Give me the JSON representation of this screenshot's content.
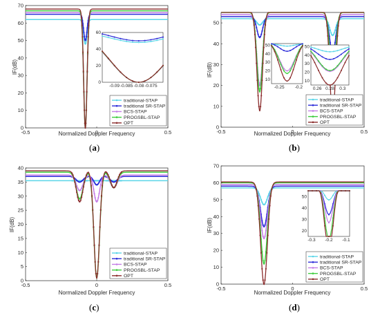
{
  "legend_labels": [
    "traditional-STAP",
    "traditional SR-STAP",
    "BCS-STAP",
    "PROGSBL-STAP",
    "OPT"
  ],
  "series_colors": [
    "#5bd5e8",
    "#2b2bd9",
    "#c47de6",
    "#3dcc3d",
    "#8a2b2b"
  ],
  "chart_data": [
    {
      "panel": "(a)",
      "type": "line",
      "xlabel": "Normalized Doppler Frequency",
      "ylabel": "IF(dB)",
      "xlim": [
        -0.5,
        0.5
      ],
      "ylim": [
        0,
        70
      ],
      "xticks": [
        "-0.5",
        "0",
        "0.5"
      ],
      "yticks": [
        "0",
        "10",
        "20",
        "30",
        "40",
        "50",
        "60",
        "70"
      ],
      "legend_position": "bottom-right",
      "notches": [
        {
          "center": -0.08,
          "width": 0.03,
          "depths": [
            48,
            50,
            0,
            0,
            0
          ]
        }
      ],
      "baseline": [
        62,
        65,
        66,
        67,
        68
      ],
      "inset": {
        "xticks": [
          "-0.09",
          "-0.085",
          "-0.08",
          "-0.075"
        ],
        "yticks": [
          "0",
          "20",
          "40",
          "60"
        ]
      }
    },
    {
      "panel": "(b)",
      "type": "line",
      "xlabel": "Normalized Doppler Frequency",
      "ylabel": "IF(dB)",
      "xlim": [
        -0.5,
        0.5
      ],
      "ylim": [
        0,
        55
      ],
      "xticks": [
        "-0.5",
        "0",
        "0.5"
      ],
      "yticks": [
        "0",
        "10",
        "20",
        "30",
        "40",
        "50"
      ],
      "legend_position": "bottom-right",
      "notches": [
        {
          "center": -0.23,
          "width": 0.05,
          "depths": [
            49,
            43,
            20,
            17,
            8
          ]
        },
        {
          "center": 0.28,
          "width": 0.05,
          "depths": [
            44,
            35,
            21,
            22,
            5
          ]
        }
      ],
      "baseline": [
        52,
        53,
        54,
        55,
        55.5
      ],
      "inset1": {
        "xticks": [
          "-0.25",
          "-0.2"
        ],
        "yticks": [
          "10",
          "20",
          "30",
          "40",
          "50"
        ]
      },
      "inset2": {
        "xticks": [
          "0.26",
          "0.28",
          "0.3"
        ],
        "yticks": [
          "10",
          "20",
          "30",
          "40",
          "50"
        ]
      }
    },
    {
      "panel": "(c)",
      "type": "line",
      "xlabel": "Normalized Doppler Frequency",
      "ylabel": "IF(dB)",
      "xlim": [
        -0.5,
        0.5
      ],
      "ylim": [
        0,
        40
      ],
      "xticks": [
        "-0.5",
        "0",
        "0.5"
      ],
      "yticks": [
        "0",
        "5",
        "10",
        "15",
        "20",
        "25",
        "30",
        "35",
        "40"
      ],
      "legend_position": "bottom-right",
      "notches": [
        {
          "center": 0.0,
          "width": 0.05,
          "depths": [
            35.5,
            34,
            28,
            1,
            1
          ]
        },
        {
          "center": -0.12,
          "width": 0.06,
          "depths": [
            35.5,
            35,
            32,
            29,
            28
          ]
        },
        {
          "center": 0.12,
          "width": 0.06,
          "depths": [
            35.5,
            35,
            33,
            33,
            33
          ]
        }
      ],
      "baseline": [
        35.5,
        37,
        37.5,
        38.5,
        39
      ]
    },
    {
      "panel": "(d)",
      "type": "line",
      "xlabel": "Normalized Doppler Frequency",
      "ylabel": "IF(dB)",
      "xlim": [
        -0.5,
        0.5
      ],
      "ylim": [
        0,
        70
      ],
      "xticks": [
        "-0.5",
        "0",
        "0.5"
      ],
      "yticks": [
        "0",
        "10",
        "20",
        "30",
        "40",
        "50",
        "60",
        "70"
      ],
      "legend_position": "bottom-right",
      "notches": [
        {
          "center": -0.2,
          "width": 0.06,
          "depths": [
            47,
            34,
            27,
            12,
            0
          ]
        }
      ],
      "baseline": [
        57,
        58,
        59,
        60,
        60.5
      ],
      "inset": {
        "xticks": [
          "-0.3",
          "-0.2",
          "-0.1"
        ],
        "yticks": [
          "20",
          "30",
          "40",
          "50"
        ]
      }
    }
  ]
}
